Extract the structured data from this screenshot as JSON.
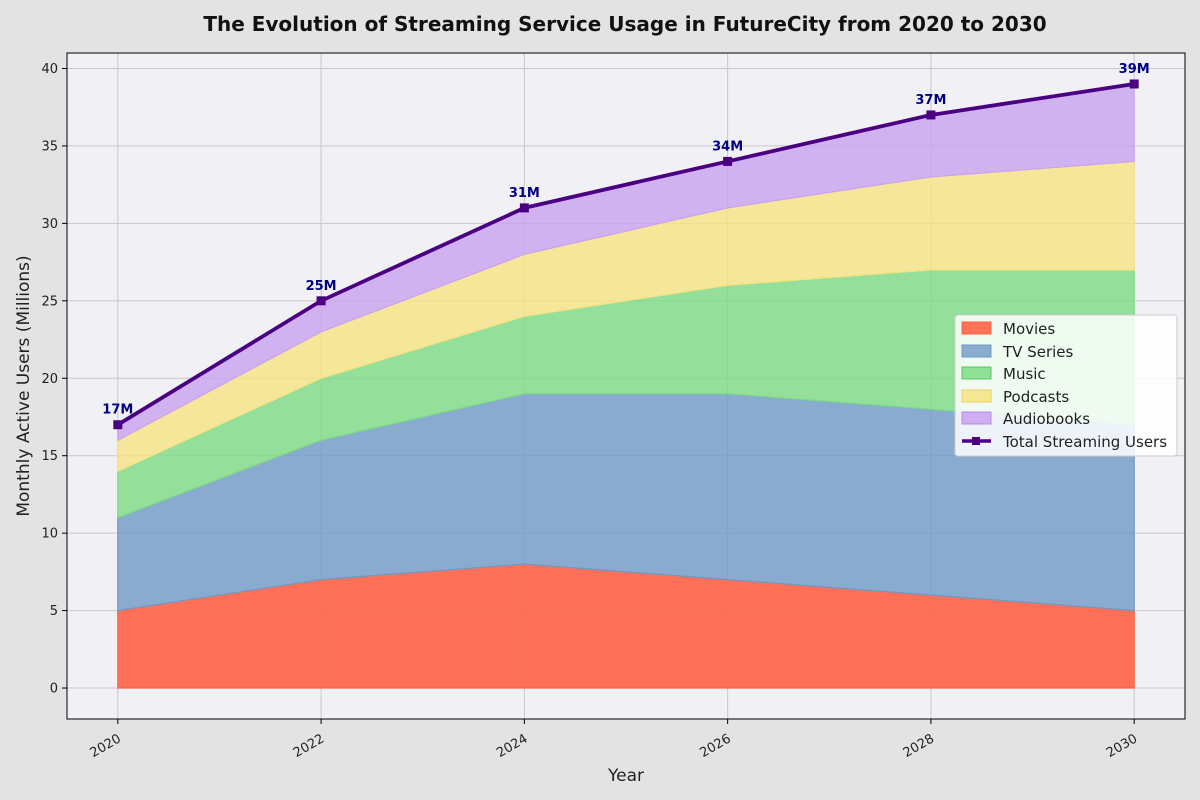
{
  "chart_data": {
    "type": "area",
    "title": "The Evolution of Streaming Service Usage in FutureCity from 2020 to 2030",
    "xlabel": "Year",
    "ylabel": "Monthly Active Users (Millions)",
    "x": [
      2020,
      2022,
      2024,
      2026,
      2028,
      2030
    ],
    "x_ticks": [
      "2020",
      "2022",
      "2024",
      "2026",
      "2028",
      "2030"
    ],
    "xlim": [
      2019.5,
      2030.5
    ],
    "ylim": [
      -2,
      41
    ],
    "y_ticks": [
      0,
      5,
      10,
      15,
      20,
      25,
      30,
      35,
      40
    ],
    "stacked": true,
    "grid": true,
    "legend_position": "right",
    "series": [
      {
        "name": "Movies",
        "values": [
          5,
          7,
          8,
          7,
          6,
          5
        ],
        "color": "#ff6347"
      },
      {
        "name": "TV Series",
        "values": [
          6,
          9,
          11,
          12,
          12,
          12
        ],
        "color": "#6f9ac6"
      },
      {
        "name": "Music",
        "values": [
          3,
          4,
          5,
          7,
          9,
          10
        ],
        "color": "#7ddc85"
      },
      {
        "name": "Podcasts",
        "values": [
          2,
          3,
          4,
          5,
          6,
          7
        ],
        "color": "#f7e382"
      },
      {
        "name": "Audiobooks",
        "values": [
          1,
          2,
          3,
          3,
          4,
          5
        ],
        "color": "#c9a2f0"
      }
    ],
    "total_line": {
      "name": "Total Streaming Users",
      "values": [
        17,
        25,
        31,
        34,
        37,
        39
      ],
      "labels": [
        "17M",
        "25M",
        "31M",
        "34M",
        "37M",
        "39M"
      ],
      "color": "#4b0082"
    }
  }
}
